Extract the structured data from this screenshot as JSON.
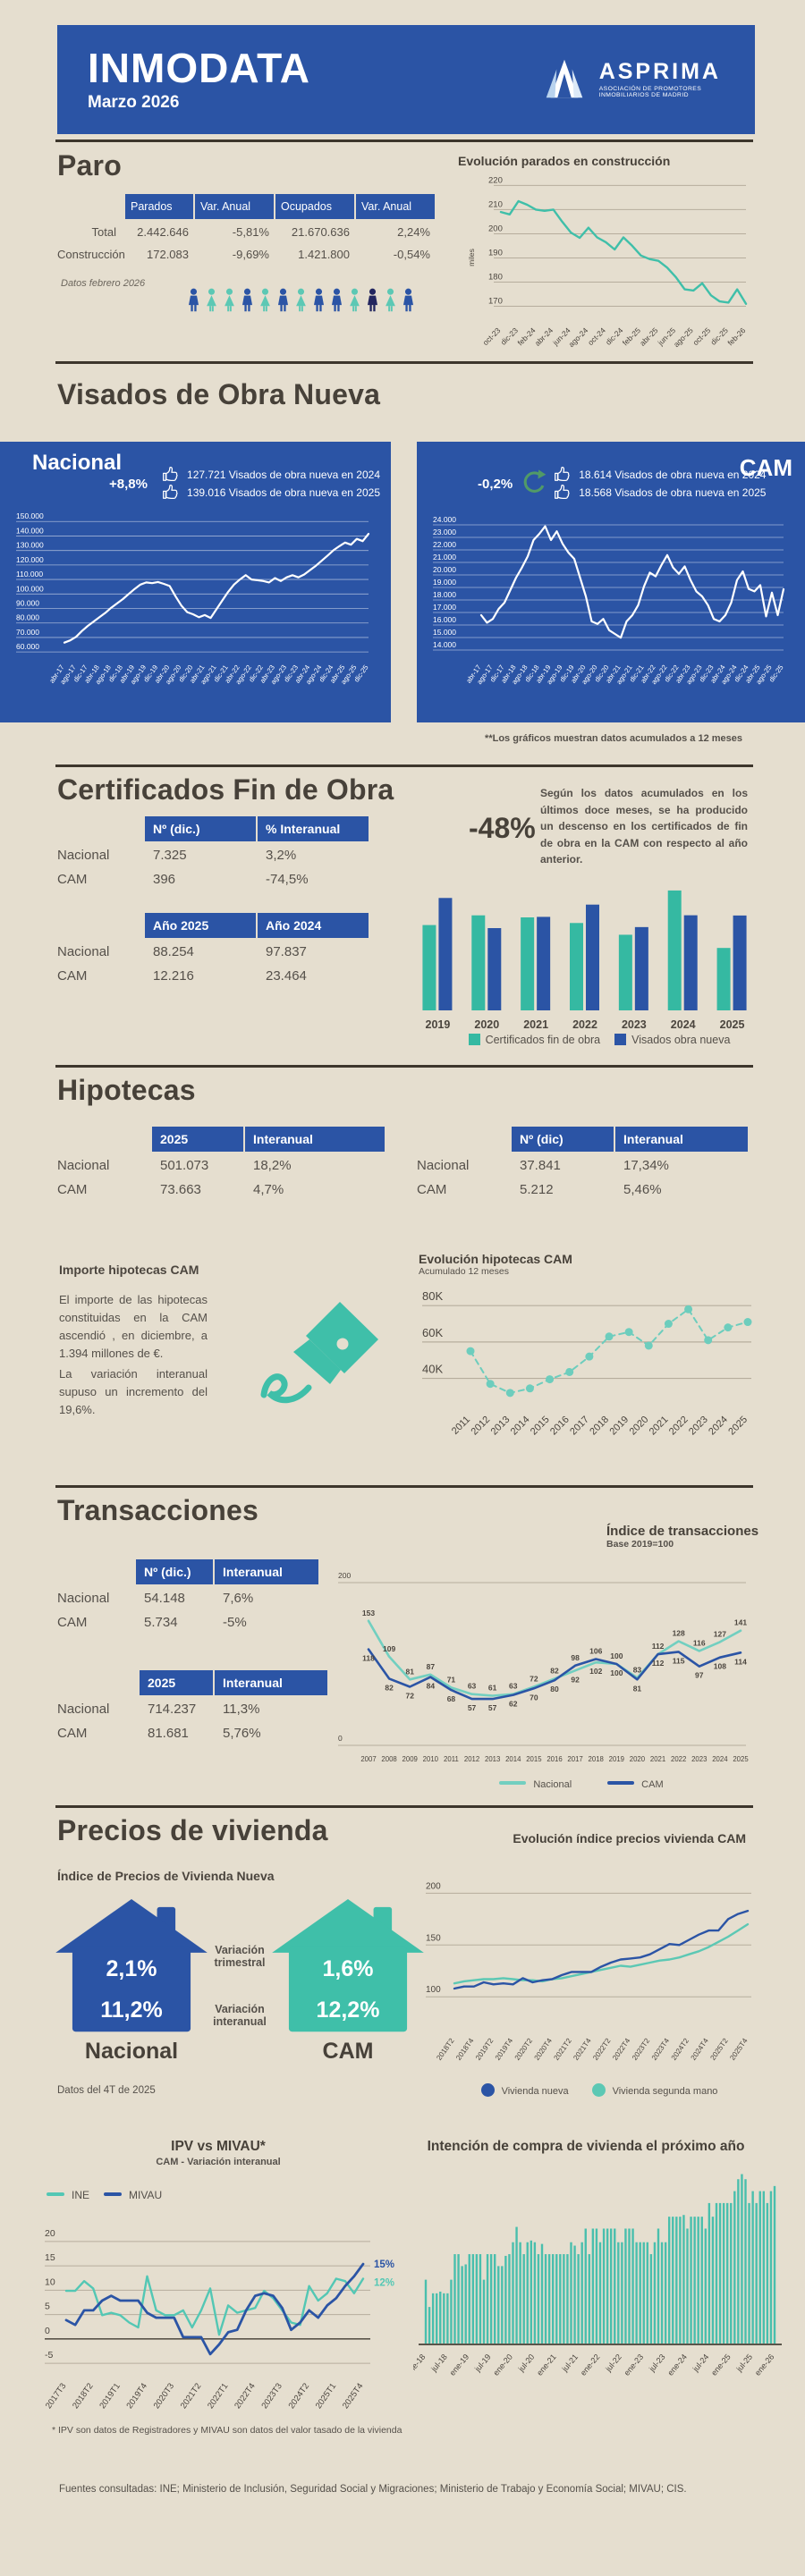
{
  "colors": {
    "blue": "#2b54a5",
    "teal": "#3fbfa9",
    "tealLight": "#72cfc0",
    "tealBar": "#35b9a2",
    "navy": "#23265f",
    "ink": "#4b453e",
    "grid": "#b6ad9d",
    "green": "#519a67",
    "bg": "#e5decf"
  },
  "header": {
    "title": "INMODATA",
    "date": "Marzo 2026",
    "logo_name": "ASPRIMA",
    "logo_tagline": "ASOCIACIÓN DE PROMOTORES INMOBILIARIOS DE MADRID"
  },
  "paro": {
    "title": "Paro",
    "note": "Datos febrero 2026",
    "table": {
      "headers": [
        "Parados",
        "Var. Anual",
        "Ocupados",
        "Var. Anual"
      ],
      "rows": [
        {
          "label": "Total",
          "values": [
            "2.442.646",
            "-5,81%",
            "21.670.636",
            "2,24%"
          ]
        },
        {
          "label": "Construcción",
          "values": [
            "172.083",
            "-9,69%",
            "1.421.800",
            "-0,54%"
          ]
        }
      ]
    },
    "people": [
      "m-blue",
      "f-teal",
      "f-teal",
      "m-blue",
      "f-teal",
      "m-blue",
      "f-teal",
      "m-blue",
      "m-blue",
      "f-teal",
      "m-navy",
      "f-teal",
      "m-blue"
    ]
  },
  "visados": {
    "title": "Visados de Obra Nueva",
    "nacional": {
      "label": "Nacional",
      "pct": "+8,8%",
      "stat1": "127.721 Visados de obra nueva en 2024",
      "stat2": "139.016 Visados de obra nueva en 2025"
    },
    "cam": {
      "label": "CAM",
      "pct": "-0,2%",
      "stat1": "18.614 Visados de obra nueva en 2024",
      "stat2": "18.568 Visados de obra nueva en 2025"
    },
    "footnote": "**Los gráficos muestran datos acumulados a 12 meses"
  },
  "certificados": {
    "title": "Certificados Fin de Obra",
    "table1": {
      "headers": [
        "Nº (dic.)",
        "% Interanual"
      ],
      "rows": [
        {
          "label": "Nacional",
          "values": [
            "7.325",
            "3,2%"
          ]
        },
        {
          "label": "CAM",
          "values": [
            "396",
            "-74,5%"
          ]
        }
      ]
    },
    "table2": {
      "headers": [
        "Año 2025",
        "Año 2024"
      ],
      "rows": [
        {
          "label": "Nacional",
          "values": [
            "88.254",
            "97.837"
          ]
        },
        {
          "label": "CAM",
          "values": [
            "12.216",
            "23.464"
          ]
        }
      ]
    },
    "big_stat": "-48%",
    "text": "Según los datos acumulados en los últimos doce meses, se ha producido un descenso en los certificados de fin de obra en la CAM con respecto al año anterior."
  },
  "hipotecas": {
    "title": "Hipotecas",
    "table1": {
      "headers": [
        "2025",
        "Interanual"
      ],
      "rows": [
        {
          "label": "Nacional",
          "values": [
            "501.073",
            "18,2%"
          ]
        },
        {
          "label": "CAM",
          "values": [
            "73.663",
            "4,7%"
          ]
        }
      ]
    },
    "table2": {
      "headers": [
        "Nº (dic)",
        "Interanual"
      ],
      "rows": [
        {
          "label": "Nacional",
          "values": [
            "37.841",
            "17,34%"
          ]
        },
        {
          "label": "CAM",
          "values": [
            "5.212",
            "5,46%"
          ]
        }
      ]
    },
    "subtitle": "Importe hipotecas CAM",
    "text1": "El importe de las hipotecas constituidas en la CAM ascendió , en diciembre, a 1.394 millones de €.",
    "text2": "La variación interanual supuso un incremento del 19,6%."
  },
  "transacciones": {
    "title": "Transacciones",
    "table1": {
      "headers": [
        "Nº (dic.)",
        "Interanual"
      ],
      "rows": [
        {
          "label": "Nacional",
          "values": [
            "54.148",
            "7,6%"
          ]
        },
        {
          "label": "CAM",
          "values": [
            "5.734",
            "-5%"
          ]
        }
      ]
    },
    "table2": {
      "headers": [
        "2025",
        "Interanual"
      ],
      "rows": [
        {
          "label": "Nacional",
          "values": [
            "714.237",
            "11,3%"
          ]
        },
        {
          "label": "CAM",
          "values": [
            "81.681",
            "5,76%"
          ]
        }
      ]
    }
  },
  "precios": {
    "title": "Precios de vivienda",
    "subtitle": "Índice de Precios de Vivienda Nueva",
    "nacional": {
      "q": "2,1%",
      "y": "11,2%",
      "label": "Nacional"
    },
    "cam": {
      "q": "1,6%",
      "y": "12,2%",
      "label": "CAM"
    },
    "mid1": "Variación trimestral",
    "mid2": "Variación interanual",
    "note": "Datos del 4T de 2025"
  },
  "footer": "Fuentes consultadas: INE; Ministerio de Inclusión, Seguridad Social y Migraciones; Ministerio de Trabajo y Economía Social; MIVAU; CIS.",
  "chart_data": [
    {
      "id": "paro_evolucion",
      "type": "line",
      "title": "Evolución parados en construcción",
      "ylabel": "miles",
      "ylim": [
        165,
        222
      ],
      "yticks": [
        170,
        180,
        190,
        200,
        210,
        220
      ],
      "label_every": 2,
      "x_labels": [
        "oct-23",
        "dic-23",
        "feb-24",
        "abr-24",
        "jun-24",
        "ago-24",
        "oct-24",
        "dic-24",
        "feb-25",
        "abr-25",
        "jun-25",
        "ago-25",
        "oct-25",
        "dic-25",
        "feb-26"
      ],
      "values": [
        209,
        208,
        213.5,
        212,
        210,
        209.5,
        210,
        205,
        200.5,
        198.3,
        202.5,
        198.5,
        196.5,
        193.5,
        198.5,
        195,
        191,
        189.5,
        188.8,
        186,
        182,
        177,
        176.5,
        179.5,
        174.5,
        172,
        171.5,
        177,
        171
      ]
    },
    {
      "id": "visados_nacional",
      "type": "line",
      "region": "Nacional",
      "ylim": [
        57,
        152
      ],
      "yticks": [
        60,
        70,
        80,
        90,
        100,
        110,
        120,
        130,
        140,
        150
      ],
      "label_every": 2,
      "x_labels": [
        "abr-17",
        "ago-17",
        "dic-17",
        "abr-18",
        "ago-18",
        "dic-18",
        "abr-19",
        "ago-19",
        "dic-19",
        "abr-20",
        "ago-20",
        "dic-20",
        "abr-21",
        "ago-21",
        "dic-21",
        "abr-22",
        "ago-22",
        "dic-22",
        "abr-23",
        "ago-23",
        "dic-23",
        "abr-24",
        "ago-24",
        "dic-24",
        "abr-25",
        "ago-25",
        "dic-25"
      ],
      "values": [
        64,
        65.5,
        68,
        72,
        75.5,
        78.5,
        81.5,
        84.5,
        88,
        91,
        94,
        97.5,
        101,
        104,
        105.5,
        105,
        105.8,
        104.5,
        103,
        96,
        89.5,
        85,
        83.5,
        81.5,
        83,
        81,
        87,
        93,
        99,
        104,
        107.5,
        110.5,
        107.5,
        107,
        106.5,
        105.5,
        108.5,
        106.5,
        109,
        110.5,
        109,
        111,
        114,
        117,
        120.5,
        124,
        127.7,
        130.5,
        133,
        131.5,
        135.5,
        134,
        139
      ]
    },
    {
      "id": "visados_cam",
      "type": "line",
      "region": "CAM",
      "ylim": [
        13.5,
        24.5
      ],
      "yticks": [
        14,
        15,
        16,
        17,
        18,
        19,
        20,
        21,
        22,
        23,
        24
      ],
      "label_every": 2,
      "x_labels": [
        "abr-17",
        "ago-17",
        "dic-17",
        "abr-18",
        "ago-18",
        "dic-18",
        "abr-19",
        "ago-19",
        "dic-19",
        "abr-20",
        "ago-20",
        "dic-20",
        "abr-21",
        "ago-21",
        "dic-21",
        "abr-22",
        "ago-22",
        "dic-22",
        "abr-23",
        "ago-23",
        "dic-23",
        "abr-24",
        "ago-24",
        "dic-24",
        "abr-25",
        "ago-25",
        "dic-25"
      ],
      "values": [
        16.5,
        15.9,
        16.2,
        17,
        17.5,
        18.5,
        19.5,
        20.3,
        21.2,
        22.5,
        23,
        23.6,
        22.5,
        23.2,
        22.2,
        21.5,
        21,
        19.5,
        18,
        16,
        15.8,
        16.2,
        15.3,
        15,
        14.7,
        16,
        16.5,
        17.3,
        18.8,
        19.9,
        19.6,
        20.5,
        21.3,
        20.3,
        19.8,
        20.4,
        19.3,
        18.4,
        18,
        17.3,
        16.2,
        16,
        16.5,
        17.5,
        19.3,
        20,
        18.6,
        18.4,
        18.9,
        16.4,
        18.3,
        16.5,
        18.57
      ]
    },
    {
      "id": "certificados_bars",
      "type": "bar",
      "categories": [
        "2019",
        "2020",
        "2021",
        "2022",
        "2023",
        "2024",
        "2025"
      ],
      "ylim": [
        0,
        24500
      ],
      "series": [
        {
          "name": "Certificados fin de obra",
          "values": [
            16700,
            18600,
            18200,
            17100,
            14800,
            23464,
            12216
          ]
        },
        {
          "name": "Visados obra nueva",
          "values": [
            22000,
            16100,
            18300,
            20700,
            16300,
            18614,
            18568
          ]
        }
      ]
    },
    {
      "id": "hipotecas_evolucion",
      "type": "line",
      "title": "Evolución hipotecas CAM",
      "subtitle": "Acumulado 12 meses",
      "ylim": [
        28,
        86
      ],
      "yticks": [
        40,
        60,
        80
      ],
      "ytick_labels": [
        "40K",
        "60K",
        "80K"
      ],
      "label_every": 1,
      "x_labels": [
        "2011",
        "2012",
        "2013",
        "2014",
        "2015",
        "2016",
        "2017",
        "2018",
        "2019",
        "2020",
        "2021",
        "2022",
        "2023",
        "2024",
        "2025"
      ],
      "values": [
        55,
        37,
        32,
        34.5,
        39.5,
        43.5,
        52,
        63,
        65.5,
        58,
        70,
        78,
        61,
        68,
        71
      ]
    },
    {
      "id": "transacciones_indice",
      "type": "line",
      "title": "Índice de transacciones",
      "subtitle": "Base 2019=100",
      "ylim": [
        0,
        200
      ],
      "x_labels": [
        "2007",
        "2008",
        "2009",
        "2010",
        "2011",
        "2012",
        "2013",
        "2014",
        "2015",
        "2016",
        "2017",
        "2018",
        "2019",
        "2020",
        "2021",
        "2022",
        "2023",
        "2024",
        "2025"
      ],
      "series": [
        {
          "name": "Nacional",
          "values": [
            153,
            109,
            81,
            87,
            71,
            63,
            61,
            63,
            72,
            82,
            92,
            102,
            100,
            83,
            112,
            128,
            116,
            127,
            141
          ]
        },
        {
          "name": "CAM",
          "values": [
            118,
            82,
            72,
            84,
            68,
            57,
            57,
            62,
            70,
            80,
            98,
            106,
            100,
            81,
            112,
            115,
            97,
            108,
            114
          ]
        }
      ]
    },
    {
      "id": "precios_indice",
      "type": "line",
      "title": "Evolución índice precios vivienda CAM",
      "ylim": [
        70,
        215
      ],
      "yticks": [
        100,
        150,
        200
      ],
      "label_every": 2,
      "x_labels": [
        "2018T2",
        "2018T4",
        "2019T2",
        "2019T4",
        "2020T2",
        "2020T4",
        "2021T2",
        "2021T4",
        "2022T2",
        "2022T4",
        "2023T2",
        "2023T4",
        "2024T2",
        "2024T4",
        "2025T2",
        "2025T4"
      ],
      "series": [
        {
          "name": "Vivienda nueva",
          "values": [
            108,
            110,
            110,
            114,
            112,
            113,
            112,
            118,
            114,
            116,
            117,
            121,
            124,
            124,
            124,
            129,
            133,
            136,
            137,
            138,
            141,
            146,
            151,
            150,
            155,
            160,
            164,
            164,
            175,
            180,
            183
          ]
        },
        {
          "name": "Vivienda segunda mano",
          "values": [
            113,
            115,
            116,
            117,
            117,
            118,
            117,
            116,
            116,
            115,
            117,
            118,
            120,
            122,
            124,
            126,
            128,
            130,
            129,
            131,
            133,
            135,
            136,
            138,
            141,
            144,
            148,
            153,
            158,
            164,
            170
          ]
        }
      ]
    },
    {
      "id": "ipv_mivau",
      "type": "line",
      "title": "IPV vs MIVAU*",
      "subtitle": "CAM - Variación interanual",
      "footnote": "* IPV son datos de Registradores y MIVAU son datos del valor tasado de la vivienda",
      "ylim": [
        -7,
        22
      ],
      "yticks": [
        -5,
        0,
        5,
        10,
        15,
        20
      ],
      "label_every": 3,
      "end_labels": {
        "MIVAU": "15%",
        "INE": "12%"
      },
      "x_labels": [
        "2017T3",
        "2018T2",
        "2019T1",
        "2019T4",
        "2020T3",
        "2021T2",
        "2022T1",
        "2022T4",
        "2023T3",
        "2024T2",
        "2025T1",
        "2025T4"
      ],
      "series": [
        {
          "name": "INE",
          "values": [
            9.5,
            9.5,
            11.5,
            10,
            4.5,
            5,
            4.5,
            3,
            2,
            12.5,
            5.5,
            4.5,
            4.5,
            5.5,
            2,
            5.5,
            10,
            0.5,
            6.5,
            5,
            5.5,
            6,
            9.5,
            8,
            5.5,
            3,
            2.5,
            10.5,
            7.5,
            9,
            12,
            11.5,
            9,
            12
          ]
        },
        {
          "name": "MIVAU",
          "values": [
            3.5,
            2.5,
            5.5,
            5.5,
            7.5,
            8.5,
            7.5,
            7.5,
            7.5,
            5,
            4,
            4,
            4,
            0,
            0,
            0,
            -3.5,
            -1.5,
            1,
            1.5,
            5.5,
            8.5,
            9,
            8.5,
            6,
            1.5,
            3,
            5.5,
            4,
            6.5,
            8,
            10.5,
            12.5,
            15
          ]
        }
      ]
    },
    {
      "id": "intencion_compra",
      "type": "bar",
      "title": "Intención de compra de vivienda el próximo año",
      "ylim": [
        0,
        105
      ],
      "label_every": 6,
      "x_labels": [
        "ene-18",
        "jul-18",
        "ene-19",
        "jul-19",
        "ene-20",
        "jul-20",
        "ene-21",
        "jul-21",
        "ene-22",
        "jul-22",
        "ene-23",
        "jul-23",
        "ene-24",
        "jul-24",
        "ene-25",
        "jul-25",
        "ene-26"
      ],
      "values": [
        38,
        22,
        30,
        30,
        31,
        30,
        30,
        38,
        53,
        53,
        46,
        47,
        53,
        53,
        53,
        53,
        38,
        53,
        53,
        53,
        46,
        46,
        52,
        53,
        60,
        69,
        60,
        53,
        60,
        61,
        60,
        53,
        59,
        53,
        53,
        53,
        53,
        53,
        53,
        53,
        60,
        58,
        53,
        60,
        68,
        53,
        68,
        68,
        60,
        68,
        68,
        68,
        68,
        60,
        60,
        68,
        68,
        68,
        60,
        60,
        60,
        60,
        53,
        60,
        68,
        60,
        60,
        75,
        75,
        75,
        75,
        76,
        68,
        75,
        75,
        75,
        75,
        68,
        83,
        75,
        83,
        83,
        83,
        83,
        83,
        90,
        97,
        100,
        97,
        83,
        90,
        83,
        90,
        90,
        83,
        90,
        93
      ]
    }
  ]
}
